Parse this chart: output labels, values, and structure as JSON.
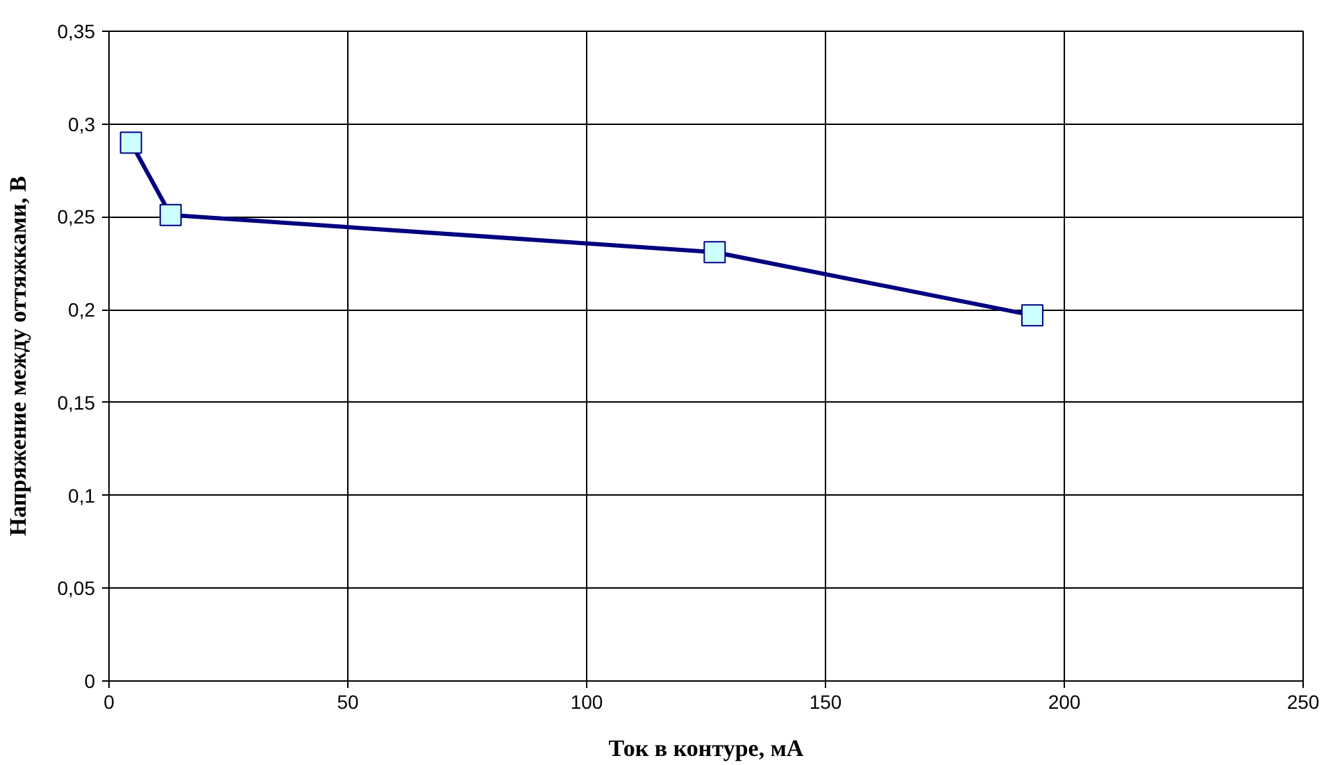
{
  "chart_data": {
    "type": "line",
    "xlabel": "Ток в контуре, мА",
    "ylabel": "Напряжение между оттяжками, В",
    "x": [
      4.6,
      12.9,
      126.8,
      193.3
    ],
    "series": [
      {
        "color": "#000080",
        "values": [
          0.29,
          0.251,
          0.231,
          0.197
        ]
      }
    ],
    "xlim": [
      0,
      250
    ],
    "xticks": [
      0,
      50,
      100,
      150,
      200,
      250
    ],
    "ylim": [
      0,
      0.35
    ],
    "yticks": [
      0,
      {
        "value": 0.05,
        "label": "0,05"
      },
      {
        "value": 0.1,
        "label": "0,1"
      },
      {
        "value": 0.15,
        "label": "0,15"
      },
      {
        "value": 0.2,
        "label": "0,2"
      },
      {
        "value": 0.25,
        "label": "0,25"
      },
      {
        "value": 0.3,
        "label": "0,3"
      },
      {
        "value": 0.35,
        "label": "0,35"
      }
    ],
    "grid": true,
    "marker": "square",
    "line_style": "solid"
  }
}
